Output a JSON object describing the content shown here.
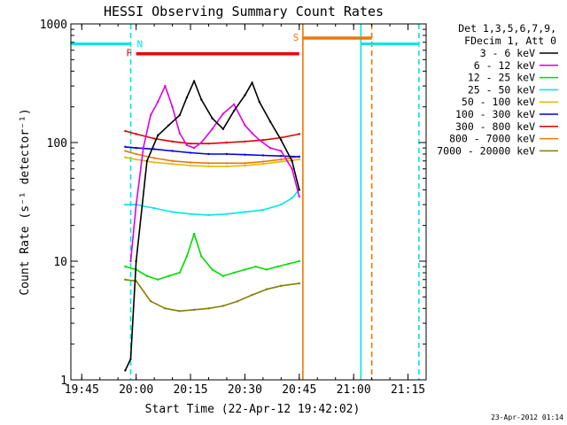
{
  "chart_data": {
    "type": "line",
    "title": "HESSI Observing Summary Count Rates",
    "xlabel": "Start Time (22-Apr-12 19:42:02)",
    "ylabel": "Count Rate (s⁻¹ detector⁻¹)",
    "y_scale": "log",
    "ylim": [
      1,
      1000
    ],
    "xlim": [
      "19:42",
      "21:20"
    ],
    "x_ticks": [
      "19:45",
      "20:00",
      "20:15",
      "20:30",
      "20:45",
      "21:00",
      "21:15"
    ],
    "y_ticks": [
      "1",
      "10",
      "100",
      "1000"
    ],
    "timestamp": "23-Apr-2012 01:14",
    "legend_header": [
      "Det 1,3,5,6,7,9,",
      "FDecim 1, Att 0"
    ],
    "series": [
      {
        "name": "3 - 6 keV",
        "color": "#000000",
        "x": [
          "19:57:00",
          "19:58:30",
          "20:00:00",
          "20:03:00",
          "20:06:00",
          "20:09:00",
          "20:12:00",
          "20:14:00",
          "20:16:00",
          "20:18:00",
          "20:21:00",
          "20:24:00",
          "20:27:00",
          "20:30:00",
          "20:32:00",
          "20:34:00",
          "20:37:00",
          "20:40:00",
          "20:43:00",
          "20:45:00"
        ],
        "y": [
          1.2,
          1.5,
          10,
          70,
          115,
          140,
          170,
          240,
          330,
          230,
          160,
          130,
          185,
          250,
          320,
          220,
          150,
          105,
          70,
          40
        ]
      },
      {
        "name": "6 - 12 keV",
        "color": "#dd00dd",
        "x": [
          "19:58:30",
          "20:00:00",
          "20:02:00",
          "20:04:00",
          "20:06:00",
          "20:08:00",
          "20:10:00",
          "20:12:00",
          "20:14:00",
          "20:16:00",
          "20:18:00",
          "20:21:00",
          "20:24:00",
          "20:27:00",
          "20:30:00",
          "20:32:00",
          "20:34:00",
          "20:37:00",
          "20:40:00",
          "20:43:00",
          "20:45:00"
        ],
        "y": [
          10,
          30,
          90,
          170,
          220,
          300,
          200,
          120,
          95,
          90,
          100,
          130,
          175,
          210,
          140,
          120,
          105,
          90,
          85,
          60,
          35
        ]
      },
      {
        "name": "12 - 25 keV",
        "color": "#00dd00",
        "x": [
          "19:57:00",
          "20:00:00",
          "20:03:00",
          "20:06:00",
          "20:09:00",
          "20:12:00",
          "20:14:00",
          "20:16:00",
          "20:18:00",
          "20:21:00",
          "20:24:00",
          "20:27:00",
          "20:30:00",
          "20:33:00",
          "20:36:00",
          "20:39:00",
          "20:42:00",
          "20:45:00"
        ],
        "y": [
          9,
          8.5,
          7.5,
          7,
          7.5,
          8,
          11,
          17,
          11,
          8.5,
          7.5,
          8,
          8.5,
          9,
          8.5,
          9,
          9.5,
          10
        ]
      },
      {
        "name": "25 - 50 keV",
        "color": "#00e6e6",
        "x": [
          "19:57:00",
          "20:00:00",
          "20:05:00",
          "20:10:00",
          "20:15:00",
          "20:20:00",
          "20:25:00",
          "20:30:00",
          "20:35:00",
          "20:40:00",
          "20:43:00",
          "20:45:00"
        ],
        "y": [
          30,
          30,
          28,
          26,
          25,
          24.5,
          25,
          26,
          27,
          30,
          34,
          40
        ]
      },
      {
        "name": "50 - 100 keV",
        "color": "#e6b800",
        "x": [
          "19:57:00",
          "20:00:00",
          "20:05:00",
          "20:10:00",
          "20:15:00",
          "20:20:00",
          "20:25:00",
          "20:30:00",
          "20:35:00",
          "20:40:00",
          "20:45:00"
        ],
        "y": [
          75,
          72,
          68,
          66,
          64,
          63,
          63,
          64,
          66,
          69,
          72
        ]
      },
      {
        "name": "100 - 300 keV",
        "color": "#0000dd",
        "x": [
          "19:57:00",
          "20:00:00",
          "20:05:00",
          "20:10:00",
          "20:15:00",
          "20:20:00",
          "20:25:00",
          "20:30:00",
          "20:35:00",
          "20:40:00",
          "20:45:00"
        ],
        "y": [
          92,
          90,
          88,
          85,
          82,
          80,
          80,
          79,
          78,
          77,
          76
        ]
      },
      {
        "name": "300 - 800 keV",
        "color": "#dd0000",
        "x": [
          "19:57:00",
          "20:00:00",
          "20:05:00",
          "20:10:00",
          "20:15:00",
          "20:20:00",
          "20:25:00",
          "20:30:00",
          "20:35:00",
          "20:40:00",
          "20:45:00"
        ],
        "y": [
          125,
          118,
          108,
          102,
          98,
          98,
          100,
          102,
          105,
          110,
          118
        ]
      },
      {
        "name": "800 - 7000 keV",
        "color": "#ee7700",
        "x": [
          "19:57:00",
          "20:00:00",
          "20:05:00",
          "20:10:00",
          "20:15:00",
          "20:20:00",
          "20:25:00",
          "20:30:00",
          "20:35:00",
          "20:40:00",
          "20:45:00"
        ],
        "y": [
          85,
          80,
          74,
          70,
          68,
          67,
          67,
          67,
          69,
          72,
          76
        ]
      },
      {
        "name": "7000 - 20000 keV",
        "color": "#808000",
        "x": [
          "19:57:00",
          "20:00:00",
          "20:04:00",
          "20:08:00",
          "20:12:00",
          "20:16:00",
          "20:20:00",
          "20:24:00",
          "20:28:00",
          "20:32:00",
          "20:36:00",
          "20:40:00",
          "20:45:00"
        ],
        "y": [
          7,
          6.8,
          4.6,
          4.0,
          3.8,
          3.9,
          4.0,
          4.2,
          4.6,
          5.2,
          5.8,
          6.2,
          6.5
        ]
      }
    ],
    "flags": [
      {
        "label": "N",
        "color": "#00e6e6",
        "start": "19:58:30",
        "end": "",
        "style": "dashed"
      },
      {
        "label": "F",
        "color": "#ee0000",
        "start": "20:00:00",
        "end": "20:45:00",
        "level": 560
      },
      {
        "label": "S",
        "color": "#ee7700",
        "start": "20:46:00",
        "end": "21:05:00",
        "level": 760
      }
    ],
    "night_bars": [
      {
        "color": "#00e6e6",
        "from": "19:42",
        "to": "19:58:30",
        "level": 680
      },
      {
        "color": "#00e6e6",
        "from": "21:02:00",
        "to": "21:18:00",
        "level": 680
      }
    ],
    "vlines": [
      {
        "time": "19:58:30",
        "color": "#00e6e6",
        "style": "dashed"
      },
      {
        "time": "20:46:00",
        "color": "#ee7700",
        "style": "solid"
      },
      {
        "time": "21:02:00",
        "color": "#00e6e6",
        "style": "solid"
      },
      {
        "time": "21:05:00",
        "color": "#ee7700",
        "style": "dashed"
      },
      {
        "time": "21:18:00",
        "color": "#00e6e6",
        "style": "dashed"
      }
    ]
  }
}
